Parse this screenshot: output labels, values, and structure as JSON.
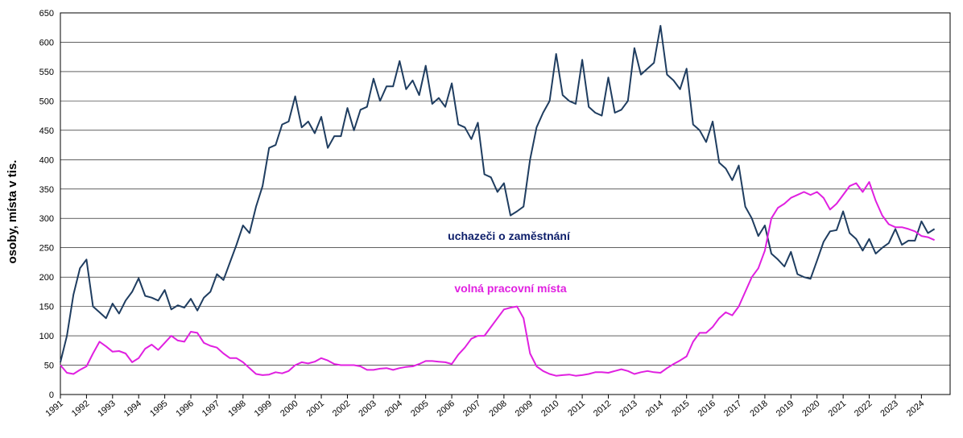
{
  "chart_data": {
    "type": "line",
    "y_label": "osoby, místa v tis.",
    "annotations": [
      "uchazeči o zaměstnání",
      "volná pracovní místa"
    ],
    "x": [
      1991,
      1991.25,
      1991.5,
      1991.75,
      1992,
      1992.25,
      1992.5,
      1992.75,
      1993,
      1993.25,
      1993.5,
      1993.75,
      1994,
      1994.25,
      1994.5,
      1994.75,
      1995,
      1995.25,
      1995.5,
      1995.75,
      1996,
      1996.25,
      1996.5,
      1996.75,
      1997,
      1997.25,
      1997.5,
      1997.75,
      1998,
      1998.25,
      1998.5,
      1998.75,
      1999,
      1999.25,
      1999.5,
      1999.75,
      2000,
      2000.25,
      2000.5,
      2000.75,
      2001,
      2001.25,
      2001.5,
      2001.75,
      2002,
      2002.25,
      2002.5,
      2002.75,
      2003,
      2003.25,
      2003.5,
      2003.75,
      2004,
      2004.25,
      2004.5,
      2004.75,
      2005,
      2005.25,
      2005.5,
      2005.75,
      2006,
      2006.25,
      2006.5,
      2006.75,
      2007,
      2007.25,
      2007.5,
      2007.75,
      2008,
      2008.25,
      2008.5,
      2008.75,
      2009,
      2009.25,
      2009.5,
      2009.75,
      2010,
      2010.25,
      2010.5,
      2010.75,
      2011,
      2011.25,
      2011.5,
      2011.75,
      2012,
      2012.25,
      2012.5,
      2012.75,
      2013,
      2013.25,
      2013.5,
      2013.75,
      2014,
      2014.25,
      2014.5,
      2014.75,
      2015,
      2015.25,
      2015.5,
      2015.75,
      2016,
      2016.25,
      2016.5,
      2016.75,
      2017,
      2017.25,
      2017.5,
      2017.75,
      2018,
      2018.25,
      2018.5,
      2018.75,
      2019,
      2019.25,
      2019.5,
      2019.75,
      2020,
      2020.25,
      2020.5,
      2020.75,
      2021,
      2021.25,
      2021.5,
      2021.75,
      2022,
      2022.25,
      2022.5,
      2022.75,
      2023,
      2023.25,
      2023.5,
      2023.75,
      2024,
      2024.25,
      2024.5
    ],
    "series": [
      {
        "name": "uchazeči o zaměstnání",
        "color": "#1f3d60",
        "values": [
          55,
          100,
          170,
          215,
          230,
          150,
          140,
          130,
          155,
          138,
          160,
          175,
          198,
          168,
          165,
          160,
          178,
          145,
          152,
          148,
          163,
          143,
          165,
          175,
          205,
          195,
          225,
          255,
          288,
          275,
          320,
          355,
          420,
          425,
          460,
          465,
          508,
          455,
          465,
          445,
          473,
          420,
          440,
          440,
          488,
          450,
          485,
          490,
          538,
          500,
          525,
          525,
          568,
          520,
          535,
          510,
          560,
          495,
          505,
          490,
          530,
          460,
          455,
          435,
          463,
          375,
          370,
          345,
          360,
          305,
          312,
          320,
          400,
          455,
          480,
          500,
          580,
          510,
          500,
          495,
          570,
          490,
          480,
          475,
          540,
          480,
          485,
          500,
          590,
          545,
          555,
          565,
          628,
          545,
          535,
          520,
          555,
          460,
          450,
          430,
          465,
          395,
          385,
          365,
          390,
          320,
          300,
          270,
          288,
          240,
          230,
          218,
          243,
          205,
          200,
          197,
          228,
          260,
          278,
          280,
          312,
          275,
          265,
          245,
          265,
          240,
          250,
          258,
          282,
          255,
          262,
          262,
          295,
          275,
          282
        ]
      },
      {
        "name": "volná pracovní místa",
        "color": "#e020e0",
        "values": [
          50,
          37,
          35,
          42,
          48,
          70,
          90,
          82,
          73,
          74,
          70,
          55,
          62,
          78,
          85,
          76,
          88,
          100,
          92,
          90,
          107,
          105,
          88,
          83,
          80,
          70,
          62,
          62,
          55,
          45,
          35,
          33,
          34,
          38,
          36,
          40,
          50,
          55,
          53,
          56,
          62,
          58,
          52,
          50,
          50,
          50,
          48,
          42,
          42,
          44,
          45,
          42,
          45,
          47,
          48,
          52,
          57,
          57,
          56,
          55,
          52,
          68,
          80,
          95,
          100,
          100,
          115,
          130,
          145,
          148,
          150,
          130,
          70,
          48,
          40,
          35,
          32,
          33,
          34,
          32,
          33,
          35,
          38,
          38,
          37,
          40,
          43,
          40,
          35,
          38,
          40,
          38,
          37,
          45,
          52,
          58,
          65,
          90,
          105,
          105,
          115,
          130,
          140,
          135,
          150,
          175,
          200,
          215,
          245,
          300,
          318,
          325,
          335,
          340,
          345,
          340,
          345,
          335,
          315,
          325,
          340,
          355,
          360,
          345,
          362,
          330,
          305,
          290,
          285,
          285,
          282,
          278,
          270,
          268,
          263
        ]
      }
    ],
    "xlim": [
      1991,
      2025.1
    ],
    "xticks": [
      1991,
      1992,
      1993,
      1994,
      1995,
      1996,
      1997,
      1998,
      1999,
      2000,
      2001,
      2002,
      2003,
      2004,
      2005,
      2006,
      2007,
      2008,
      2009,
      2010,
      2011,
      2012,
      2013,
      2014,
      2015,
      2016,
      2017,
      2018,
      2019,
      2020,
      2021,
      2022,
      2023,
      2024
    ],
    "ylim": [
      0,
      650
    ],
    "yticks": [
      0,
      50,
      100,
      150,
      200,
      250,
      300,
      350,
      400,
      450,
      500,
      550,
      600,
      650
    ],
    "grid": true
  }
}
